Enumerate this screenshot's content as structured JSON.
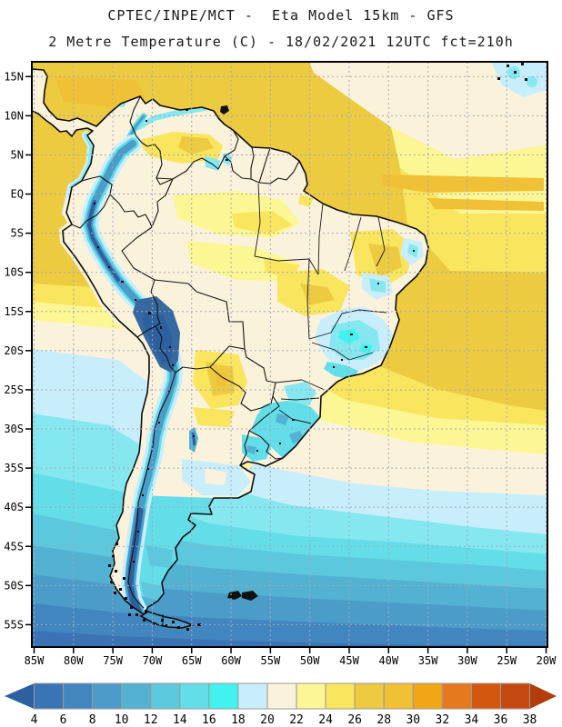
{
  "header": {
    "line1": "CPTEC/INPE/MCT -  Eta Model 15km - GFS",
    "line2": "2 Metre Temperature (C) - 18/02/2021 12UTC fct=210h"
  },
  "map": {
    "region": "South America",
    "lat_labels": [
      "15N",
      "10N",
      "5N",
      "EQ",
      "5S",
      "10S",
      "15S",
      "20S",
      "25S",
      "30S",
      "35S",
      "40S",
      "45S",
      "50S",
      "55S"
    ],
    "lon_labels": [
      "85W",
      "80W",
      "75W",
      "70W",
      "65W",
      "60W",
      "55W",
      "50W",
      "45W",
      "40W",
      "35W",
      "30W",
      "25W",
      "20W"
    ],
    "grid_color": "#a6a6bd",
    "frame_color": "#000000",
    "coast_color": "#0d0d0d"
  },
  "colorbar": {
    "tick_labels": [
      "4",
      "6",
      "8",
      "10",
      "12",
      "14",
      "16",
      "18",
      "20",
      "22",
      "24",
      "26",
      "28",
      "30",
      "32",
      "34",
      "36",
      "38"
    ],
    "cell_colors": [
      "#3b74b4",
      "#4286c0",
      "#4b9cc9",
      "#53b1d1",
      "#5cc8dd",
      "#63dde8",
      "#41f2ef",
      "#c9eefb",
      "#fbf2dc",
      "#fcf794",
      "#f9e55e",
      "#edcb41",
      "#f0c136",
      "#f2a515",
      "#e4791d",
      "#d4570f",
      "#c54a10"
    ],
    "under_arrow_color": "#2d609f",
    "over_arrow_color": "#b23c0a",
    "cell_border_color": "#9a9a9a",
    "label_color": "#000000"
  },
  "palette": {
    "under4": "#2d609f",
    "t4_6": "#3b74b4",
    "t6_8": "#4286c0",
    "t8_10": "#4b9cc9",
    "t10_12": "#53b1d1",
    "t12_14": "#5cc8dd",
    "t14_16": "#63dde8",
    "t16_18": "#41f2ef",
    "t18_20": "#c9eefb",
    "t20_22": "#fbf2dc",
    "t22_24": "#fcf794",
    "t24_26": "#f9e55e",
    "t26_28": "#edcb41",
    "t28_30": "#f0c136",
    "t30_32": "#f2a515",
    "t32_34": "#e4791d",
    "t34_36": "#d4570f",
    "t36_38": "#c54a10",
    "over38": "#b23c0a",
    "cyan_soft": "#85e8f0",
    "andes_mid": "#35699f",
    "ink": "#0d0d0d"
  },
  "chart_data": {
    "type": "heatmap",
    "title": "2 Metre Temperature (C)",
    "model": "Eta Model 15km - GFS",
    "valid": "18/02/2021 12UTC fct=210h",
    "legend_levels_C": [
      4,
      6,
      8,
      10,
      12,
      14,
      16,
      18,
      20,
      22,
      24,
      26,
      28,
      30,
      32,
      34,
      36,
      38
    ],
    "legend_colors": [
      "#3b74b4",
      "#4286c0",
      "#4b9cc9",
      "#53b1d1",
      "#5cc8dd",
      "#63dde8",
      "#41f2ef",
      "#c9eefb",
      "#fbf2dc",
      "#fcf794",
      "#f9e55e",
      "#edcb41",
      "#f0c136",
      "#f2a515",
      "#e4791d",
      "#d4570f",
      "#c54a10"
    ],
    "x_axis": [
      "85W",
      "80W",
      "75W",
      "70W",
      "65W",
      "60W",
      "55W",
      "50W",
      "45W",
      "40W",
      "35W",
      "30W",
      "25W",
      "20W"
    ],
    "y_axis": [
      "15N",
      "10N",
      "5N",
      "EQ",
      "5S",
      "10S",
      "15S",
      "20S",
      "25S",
      "30S",
      "35S",
      "40S",
      "45S",
      "50S",
      "55S"
    ],
    "grid": true,
    "legend_position": "bottom"
  }
}
